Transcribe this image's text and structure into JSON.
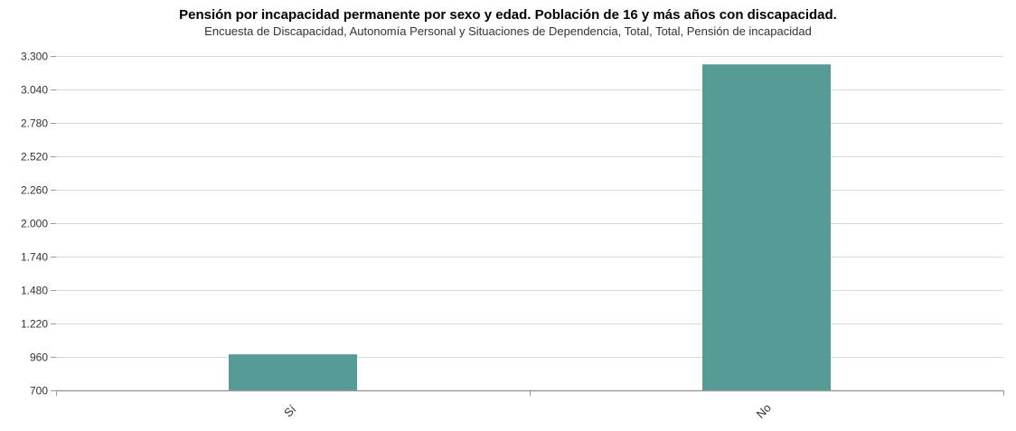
{
  "chart_data": {
    "type": "bar",
    "title": "Pensión por incapacidad permanente por sexo y edad. Población de 16 y más años con discapacidad.",
    "subtitle": "Encuesta de Discapacidad, Autonomía Personal y Situaciones de Dependencia, Total, Total, Pensión de incapacidad",
    "categories": [
      "Sí",
      "No"
    ],
    "values": [
      980,
      3235
    ],
    "ylim": [
      700,
      3300
    ],
    "yticks": [
      700,
      960,
      1220,
      1480,
      1740,
      2000,
      2260,
      2520,
      2780,
      3040,
      3300
    ],
    "ytick_labels": [
      "700",
      "960",
      "1.220",
      "1.480",
      "1.740",
      "2.000",
      "2.260",
      "2.520",
      "2.780",
      "3.040",
      "3.300"
    ],
    "grid": true,
    "legend": "none",
    "colors": {
      "bar": "#579b97",
      "grid": "#d8d8d8",
      "axis": "#999999"
    }
  }
}
